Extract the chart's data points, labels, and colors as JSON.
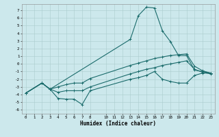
{
  "xlabel": "Humidex (Indice chaleur)",
  "bg_color": "#cce8ec",
  "grid_color": "#aacccc",
  "line_color": "#1a6b6b",
  "xlim": [
    -0.5,
    23.5
  ],
  "ylim": [
    -6.5,
    7.8
  ],
  "series_max": {
    "x": [
      0,
      2,
      3,
      13,
      14,
      15,
      16,
      17,
      18,
      19,
      20,
      21,
      22,
      23
    ],
    "y": [
      -3.8,
      -2.5,
      -3.3,
      3.2,
      6.3,
      7.4,
      7.3,
      4.3,
      2.9,
      1.1,
      1.1,
      -0.8,
      -1.0,
      -1.2
    ]
  },
  "series_p75": {
    "x": [
      0,
      2,
      3,
      4,
      5,
      6,
      7,
      8,
      13,
      14,
      15,
      16,
      17,
      18,
      19,
      20,
      21,
      22,
      23
    ],
    "y": [
      -3.8,
      -2.5,
      -3.3,
      -3.0,
      -2.7,
      -2.5,
      -2.5,
      -1.9,
      -0.2,
      0.1,
      0.4,
      0.7,
      0.9,
      1.1,
      1.2,
      1.3,
      -0.3,
      -0.9,
      -1.2
    ]
  },
  "series_mean": {
    "x": [
      0,
      2,
      3,
      4,
      5,
      6,
      7,
      8,
      13,
      14,
      15,
      16,
      17,
      18,
      19,
      20,
      21,
      22,
      23
    ],
    "y": [
      -3.8,
      -2.5,
      -3.3,
      -3.7,
      -3.5,
      -3.5,
      -3.5,
      -3.0,
      -1.3,
      -1.0,
      -0.7,
      -0.5,
      -0.2,
      0.0,
      0.2,
      0.4,
      -0.7,
      -1.1,
      -1.3
    ]
  },
  "series_min": {
    "x": [
      0,
      2,
      3,
      4,
      5,
      6,
      7,
      8,
      13,
      14,
      15,
      16,
      17,
      18,
      19,
      20,
      21,
      22,
      23
    ],
    "y": [
      -3.8,
      -2.5,
      -3.3,
      -4.5,
      -4.6,
      -4.6,
      -5.3,
      -3.5,
      -2.0,
      -1.8,
      -1.5,
      -1.0,
      -2.0,
      -2.3,
      -2.5,
      -2.5,
      -1.5,
      -1.2,
      -1.2
    ]
  }
}
